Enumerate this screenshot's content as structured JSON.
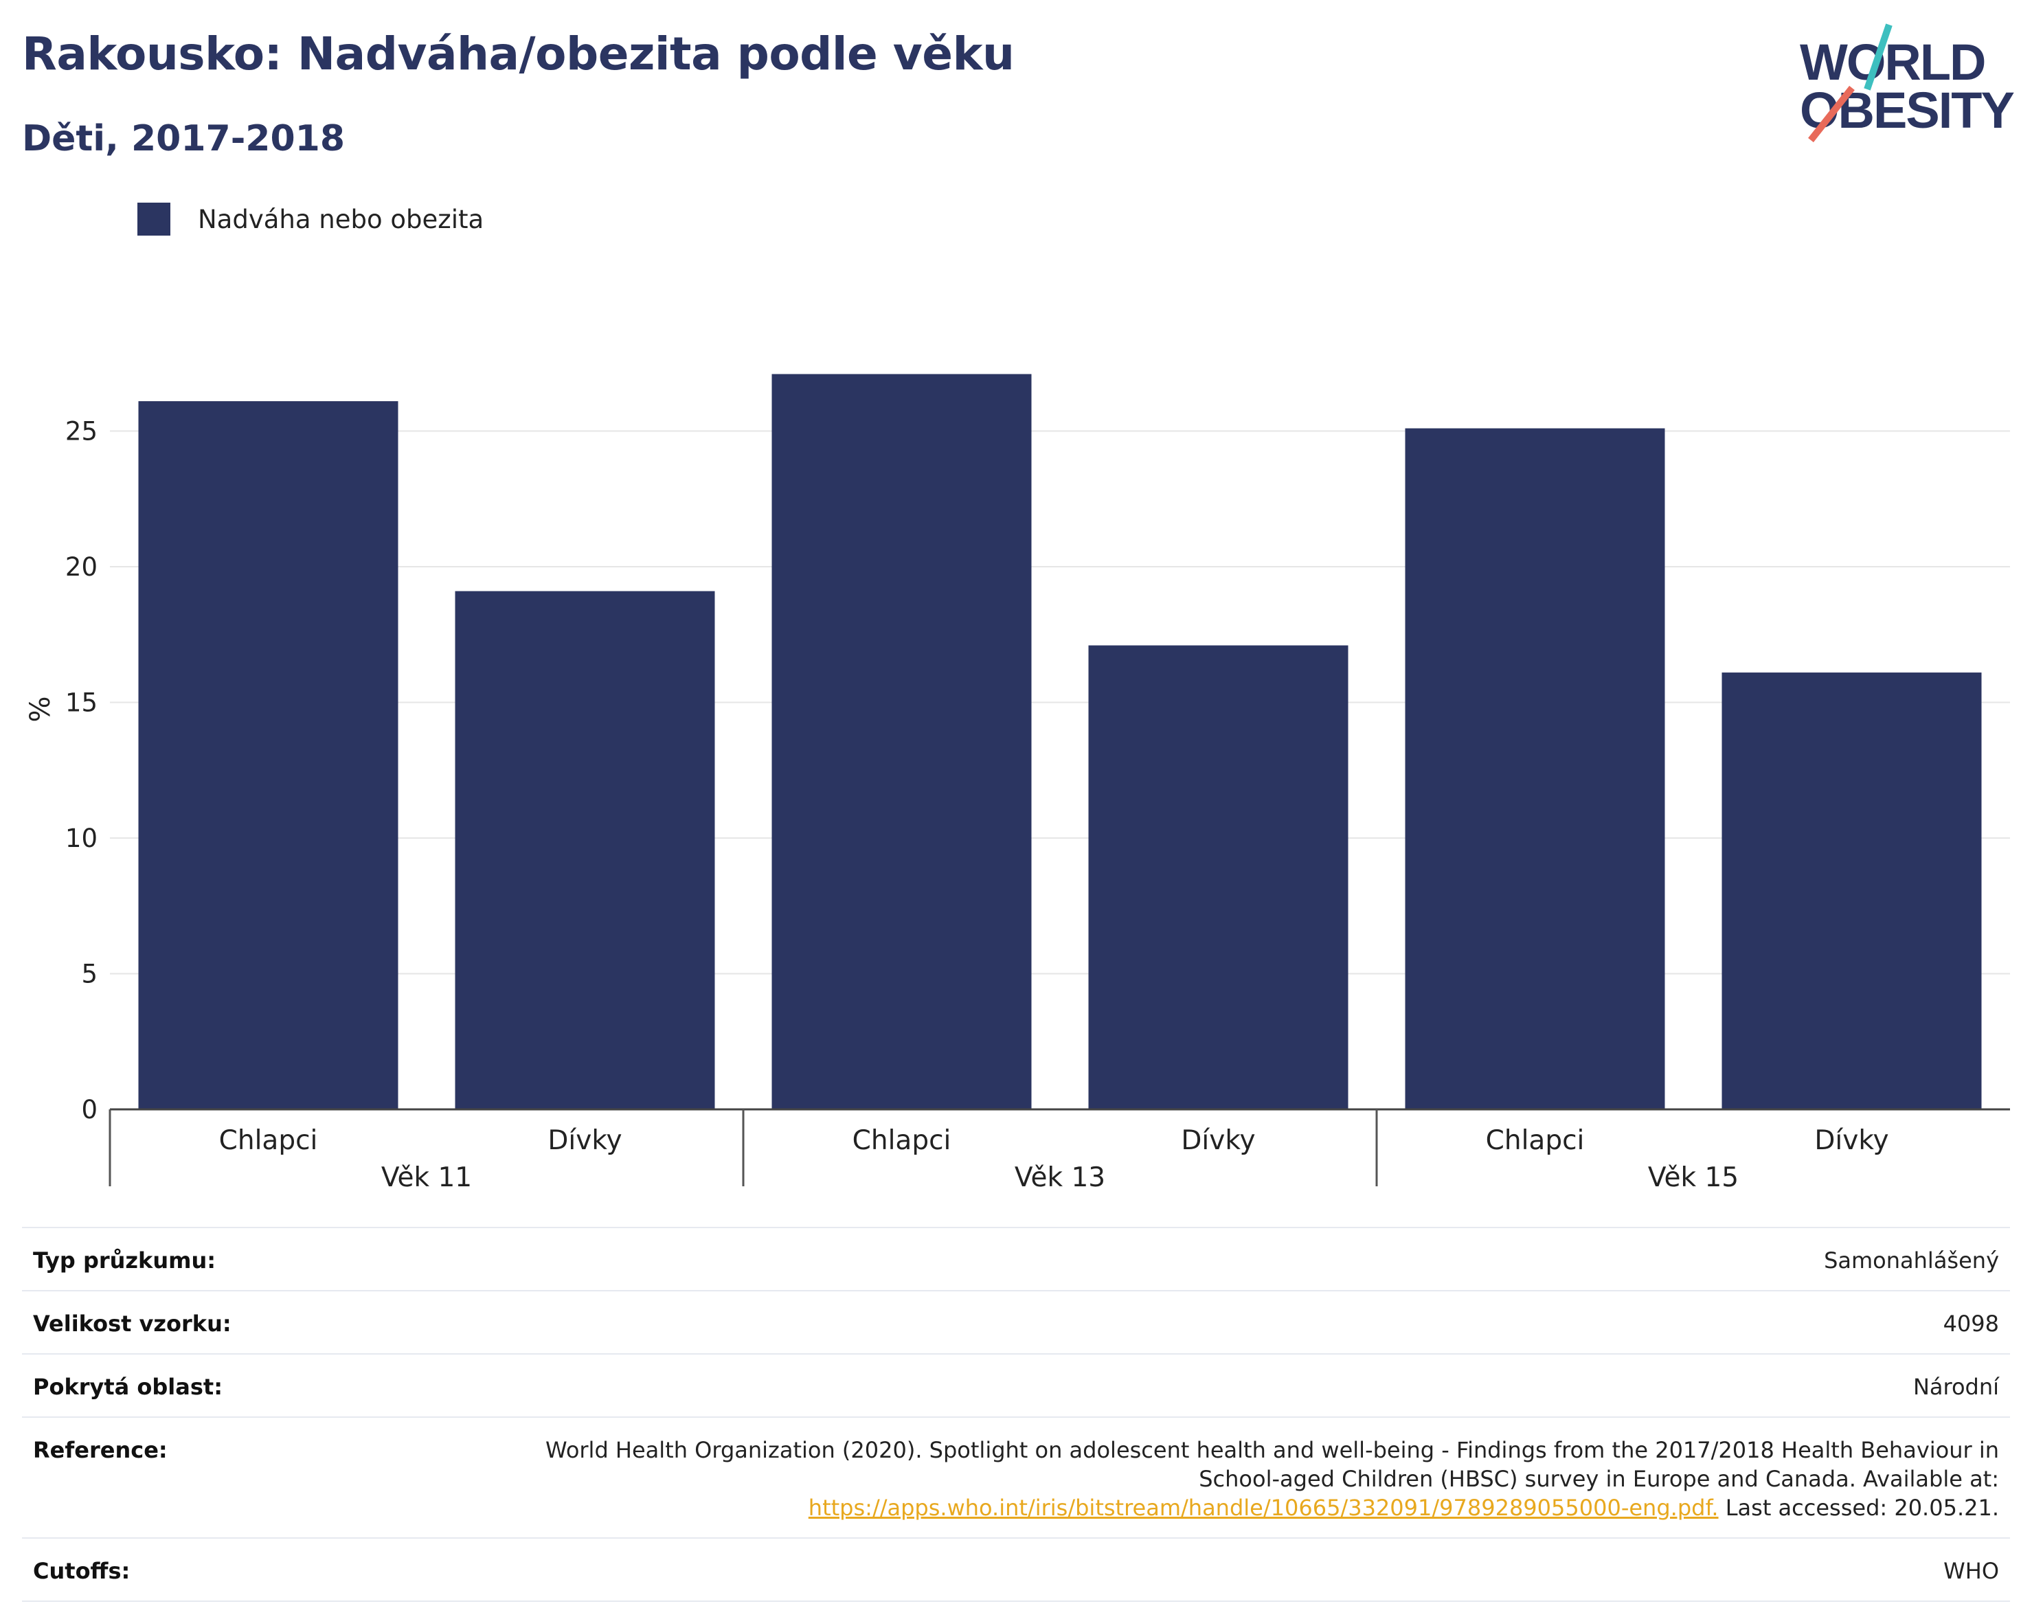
{
  "title": "Rakousko: Nadváha/obezita podle věku",
  "subtitle": "Děti, 2017-2018",
  "logo": {
    "line1": "WORLD",
    "line2": "OBESITY",
    "accent_teal": "#3dbfbf",
    "accent_coral": "#e86a5a"
  },
  "legend": {
    "label": "Nadváha nebo obezita",
    "color": "#2b3561"
  },
  "chart_data": {
    "type": "bar",
    "ylabel": "%",
    "ylim": [
      0,
      30
    ],
    "yticks": [
      0,
      5,
      10,
      15,
      20,
      25
    ],
    "grid": true,
    "groups": [
      {
        "label": "Věk 11",
        "categories": [
          "Chlapci",
          "Dívky"
        ],
        "values": [
          26.1,
          19.1
        ]
      },
      {
        "label": "Věk 13",
        "categories": [
          "Chlapci",
          "Dívky"
        ],
        "values": [
          27.1,
          17.1
        ]
      },
      {
        "label": "Věk 15",
        "categories": [
          "Chlapci",
          "Dívky"
        ],
        "values": [
          25.1,
          16.1
        ]
      }
    ],
    "series": [
      {
        "name": "Nadváha nebo obezita",
        "color": "#2b3561"
      }
    ]
  },
  "info": {
    "survey_type": {
      "key": "Typ průzkumu:",
      "value": "Samonahlášený"
    },
    "sample_size": {
      "key": "Velikost vzorku:",
      "value": "4098"
    },
    "area": {
      "key": "Pokrytá oblast:",
      "value": "Národní"
    },
    "reference": {
      "key": "Reference:",
      "text": "World Health Organization (2020). Spotlight on adolescent health and well-being - Findings from the 2017/2018 Health Behaviour in School-aged Children (HBSC) survey in Europe and Canada. Available at:",
      "link": "https://apps.who.int/iris/bitstream/handle/10665/332091/9789289055000-eng.pdf.",
      "suffix": "Last accessed: 20.05.21."
    },
    "cutoffs": {
      "key": "Cutoffs:",
      "value": "WHO"
    }
  }
}
